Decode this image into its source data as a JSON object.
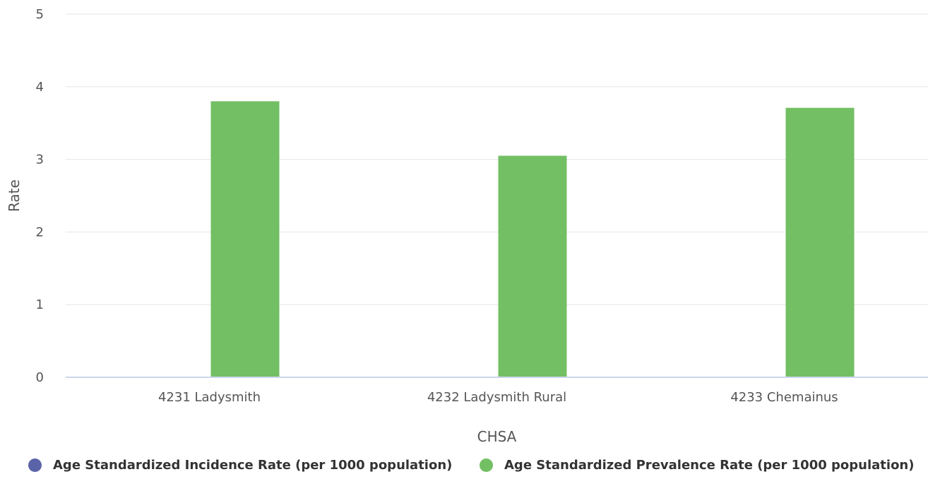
{
  "chart_data": {
    "type": "bar",
    "categories": [
      "4231 Ladysmith",
      "4232 Ladysmith Rural",
      "4233 Chemainus"
    ],
    "series": [
      {
        "name": "Age Standardized Incidence Rate (per 1000 population)",
        "color": "#5b63a8",
        "values": [
          null,
          null,
          null
        ]
      },
      {
        "name": "Age Standardized Prevalence Rate (per 1000 population)",
        "color": "#73bf64",
        "values": [
          3.8,
          3.05,
          3.71
        ]
      }
    ],
    "xlabel": "CHSA",
    "ylabel": "Rate",
    "ylim": [
      0,
      5
    ],
    "yticks": [
      0,
      1,
      2,
      3,
      4,
      5
    ],
    "grid": true,
    "legend_position": "bottom"
  }
}
